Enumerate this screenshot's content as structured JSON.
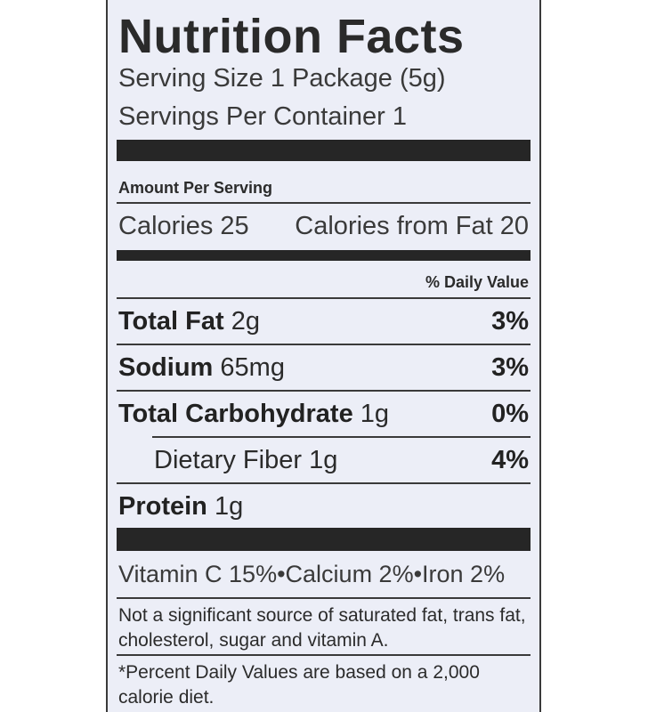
{
  "label": {
    "title": "Nutrition Facts",
    "serving_size": "Serving Size 1 Package (5g)",
    "servings_per_container": "Servings Per Container 1",
    "amount_per_serving": "Amount Per Serving",
    "calories": "Calories 25",
    "calories_from_fat": "Calories from Fat 20",
    "daily_value_header": "% Daily Value",
    "nutrients": [
      {
        "name": "Total Fat",
        "amount": "2g",
        "dv": "3%"
      },
      {
        "name": "Sodium",
        "amount": "65mg",
        "dv": "3%"
      },
      {
        "name": "Total Carbohydrate",
        "amount": "1g",
        "dv": "0%"
      },
      {
        "name": "Dietary Fiber",
        "amount": "1g",
        "dv": "4%"
      },
      {
        "name": "Protein",
        "amount": "1g",
        "dv": ""
      }
    ],
    "vitamins": "Vitamin C 15%•Calcium 2%•Iron 2%",
    "not_significant": "Not a significant source of saturated fat, trans fat, cholesterol, sugar and vitamin A.",
    "footnote": "*Percent Daily Values are based on a 2,000 calorie diet."
  }
}
